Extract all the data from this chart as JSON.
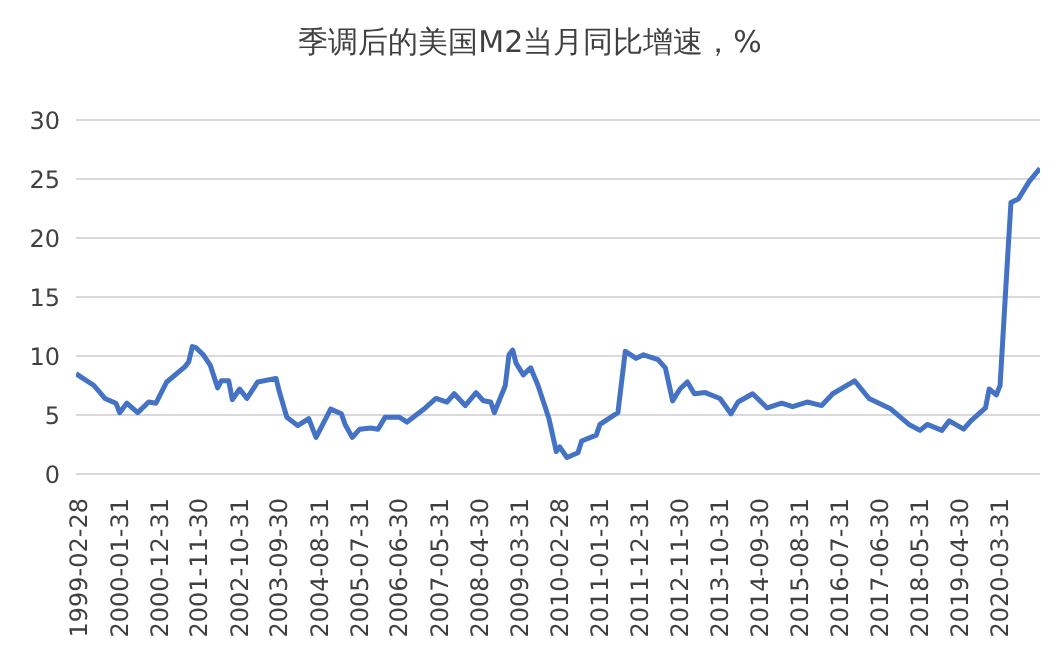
{
  "chart_data": {
    "type": "line",
    "title": "季调后的美国M2当月同比增速，%",
    "x": [
      "1999-02",
      "1999-04",
      "1999-07",
      "1999-10",
      "2000-01",
      "2000-02",
      "2000-04",
      "2000-07",
      "2000-10",
      "2000-12",
      "2001-03",
      "2001-08",
      "2001-09",
      "2001-10",
      "2001-11",
      "2002-01",
      "2002-03",
      "2002-05",
      "2002-06",
      "2002-08",
      "2002-09",
      "2002-11",
      "2003-01",
      "2003-04",
      "2003-09",
      "2003-10",
      "2003-12",
      "2004-03",
      "2004-06",
      "2004-08",
      "2004-12",
      "2005-03",
      "2005-04",
      "2005-06",
      "2005-08",
      "2005-11",
      "2006-01",
      "2006-03",
      "2006-07",
      "2006-09",
      "2007-02",
      "2007-05",
      "2007-08",
      "2007-10",
      "2008-01",
      "2008-04",
      "2008-06",
      "2008-08",
      "2008-09",
      "2008-12",
      "2009-01",
      "2009-02",
      "2009-03",
      "2009-05",
      "2009-07",
      "2009-09",
      "2009-12",
      "2010-02",
      "2010-03",
      "2010-05",
      "2010-08",
      "2010-09",
      "2011-01",
      "2011-02",
      "2011-05",
      "2011-07",
      "2011-09",
      "2011-12",
      "2012-02",
      "2012-06",
      "2012-08",
      "2012-10",
      "2012-12",
      "2013-02",
      "2013-04",
      "2013-07",
      "2013-11",
      "2014-02",
      "2014-04",
      "2014-08",
      "2014-12",
      "2015-04",
      "2015-07",
      "2015-11",
      "2016-03",
      "2016-06",
      "2016-12",
      "2017-04",
      "2017-10",
      "2018-03",
      "2018-06",
      "2018-08",
      "2018-12",
      "2019-02",
      "2019-06",
      "2019-08",
      "2019-12",
      "2020-01",
      "2020-03",
      "2020-04",
      "2020-06",
      "2020-07",
      "2020-09",
      "2020-12",
      "2021-03"
    ],
    "series": [
      {
        "color": "#4472c4",
        "values": [
          8.5,
          8.1,
          7.5,
          6.4,
          6.0,
          5.2,
          6.0,
          5.2,
          6.1,
          6.0,
          7.8,
          9.1,
          9.5,
          10.8,
          10.7,
          10.1,
          9.2,
          7.3,
          7.9,
          7.9,
          6.3,
          7.2,
          6.4,
          7.8,
          8.1,
          6.9,
          4.8,
          4.1,
          4.7,
          3.1,
          5.5,
          5.1,
          4.2,
          3.1,
          3.8,
          3.9,
          3.8,
          4.8,
          4.8,
          4.4,
          5.6,
          6.4,
          6.1,
          6.8,
          5.8,
          6.9,
          6.2,
          6.1,
          5.2,
          7.5,
          10.1,
          10.5,
          9.4,
          8.4,
          9.0,
          7.5,
          4.7,
          1.9,
          2.3,
          1.4,
          1.8,
          2.8,
          3.3,
          4.2,
          4.8,
          5.2,
          10.4,
          9.8,
          10.1,
          9.7,
          9.0,
          6.2,
          7.2,
          7.8,
          6.8,
          6.9,
          6.4,
          5.1,
          6.1,
          6.8,
          5.6,
          6.0,
          5.7,
          6.1,
          5.8,
          6.8,
          7.9,
          6.4,
          5.5,
          4.2,
          3.7,
          4.2,
          3.7,
          4.5,
          3.8,
          4.5,
          5.6,
          7.2,
          6.7,
          7.5,
          18,
          23.0,
          23.3,
          24.8,
          25.9
        ]
      }
    ],
    "xlim": [
      "1999-02",
      "2021-03"
    ],
    "xticks": [
      "1999-02-28",
      "2000-01-31",
      "2000-12-31",
      "2001-11-30",
      "2002-10-31",
      "2003-09-30",
      "2004-08-31",
      "2005-07-31",
      "2006-06-30",
      "2007-05-31",
      "2008-04-30",
      "2009-03-31",
      "2010-02-28",
      "2011-01-31",
      "2011-12-31",
      "2012-11-30",
      "2013-10-31",
      "2014-09-30",
      "2015-08-31",
      "2016-07-31",
      "2017-06-30",
      "2018-05-31",
      "2019-04-30",
      "2020-03-31"
    ],
    "ylim": [
      0,
      30
    ],
    "yticks": [
      0,
      5,
      10,
      15,
      20,
      25,
      30
    ],
    "grid": "y",
    "legend": false,
    "marker": "none",
    "line_style": "solid"
  }
}
